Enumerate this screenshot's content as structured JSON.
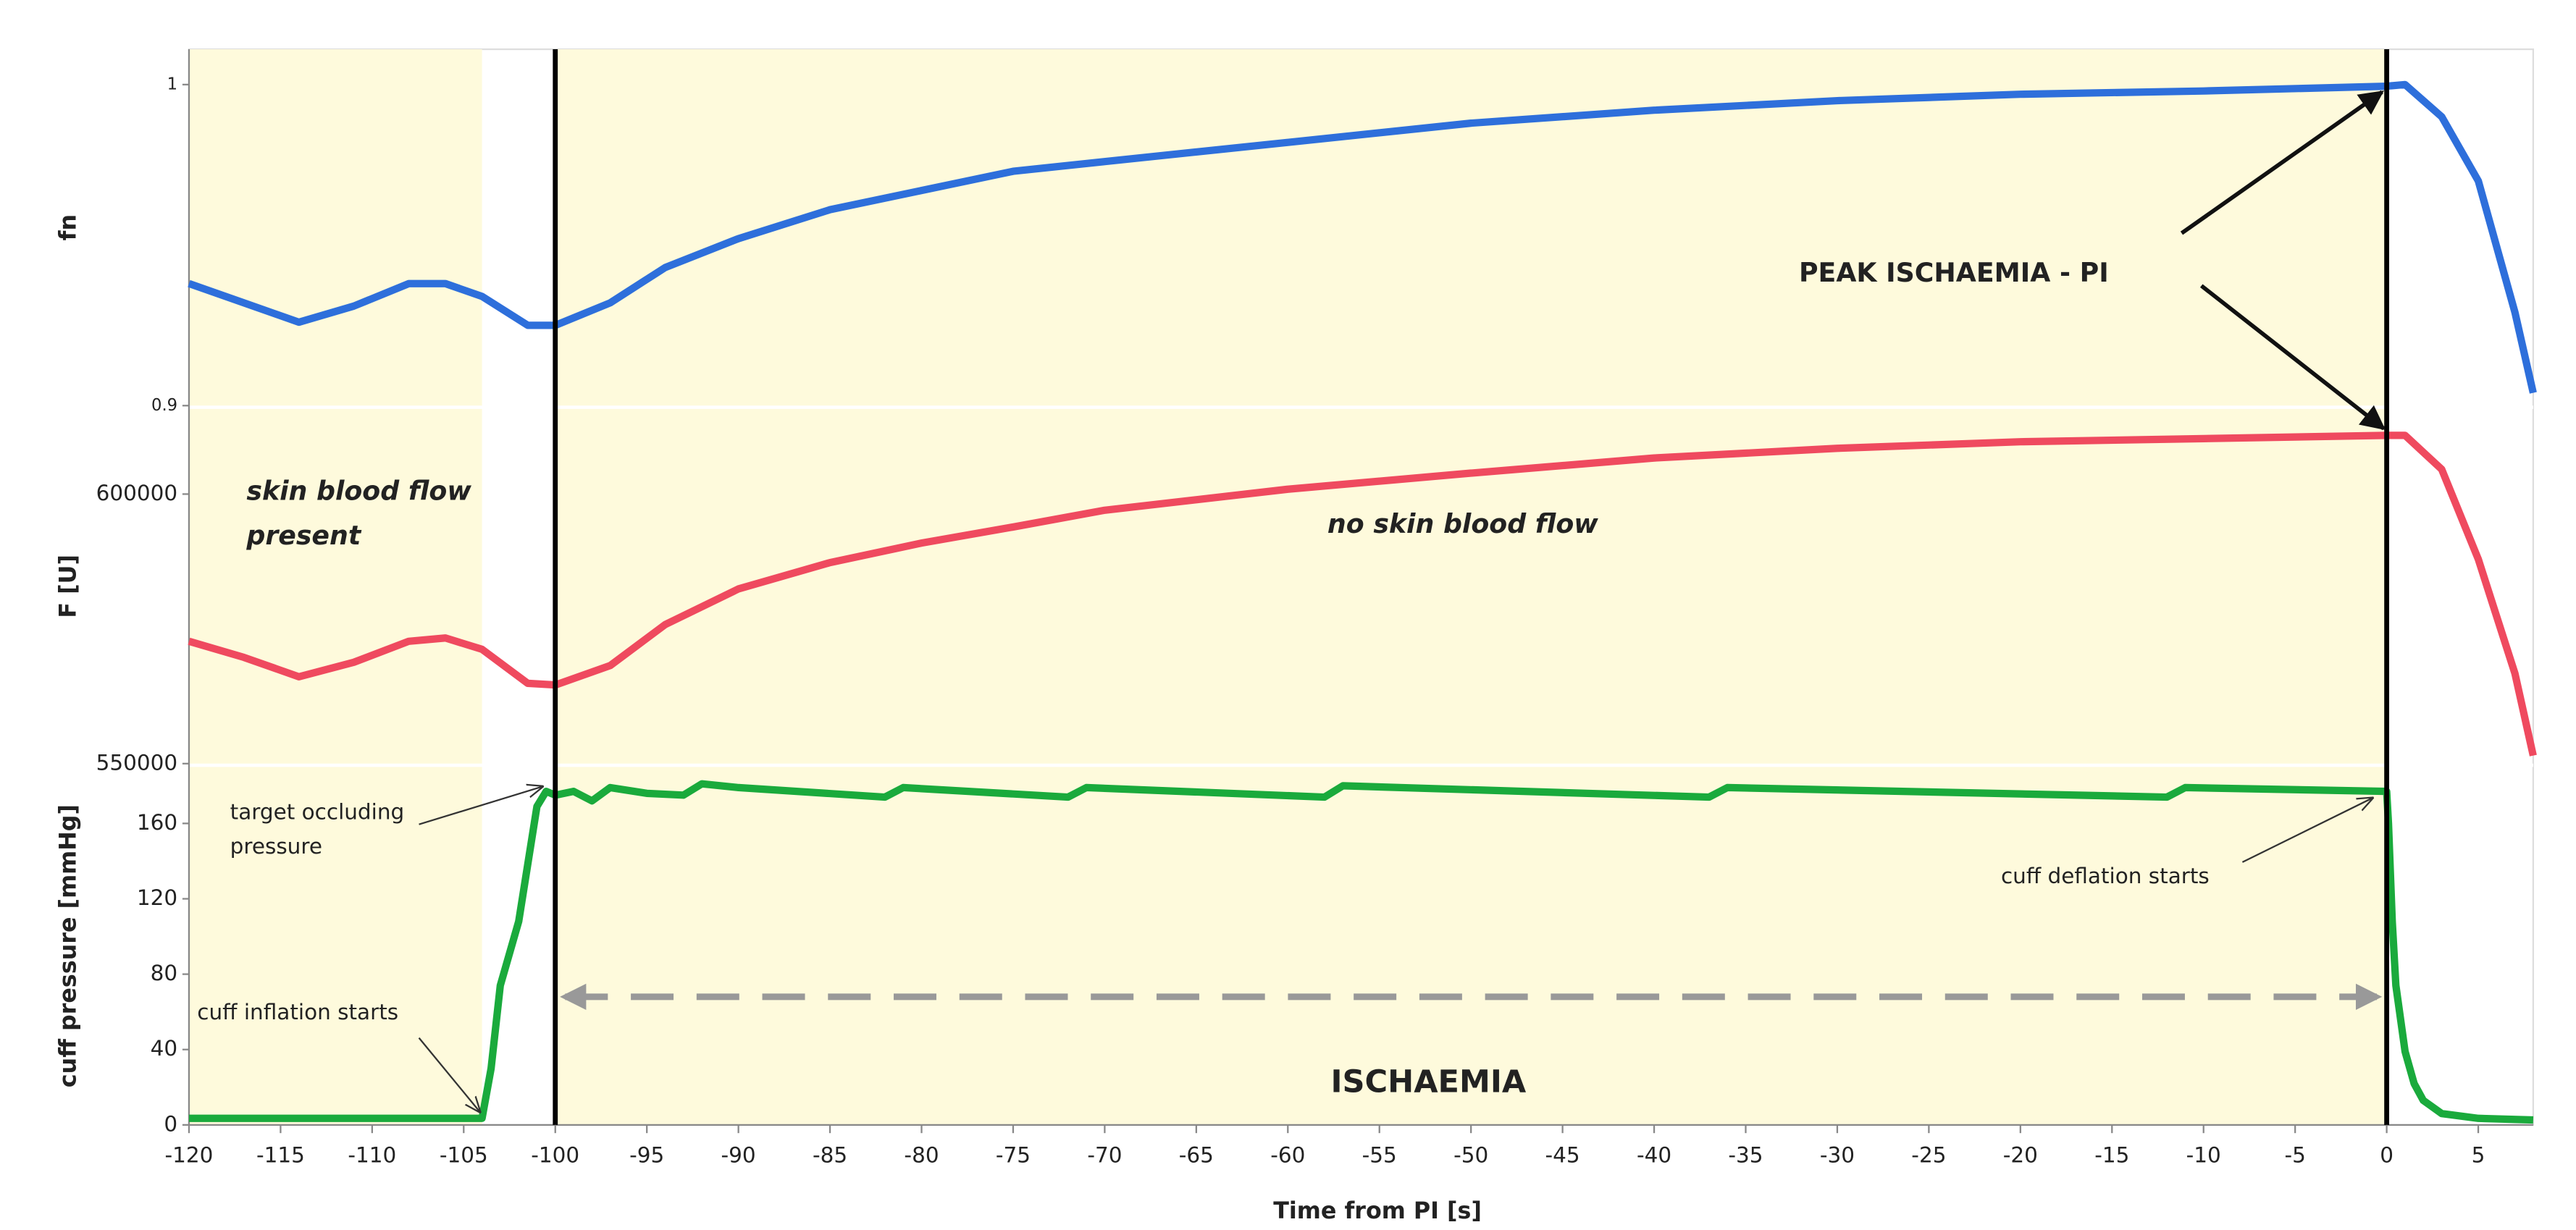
{
  "chart_data": [
    {
      "type": "line",
      "y_label": "fn",
      "color": "#2e6fdb",
      "ylim": [
        0.9,
        1.011
      ],
      "yticks": [
        0.9,
        1
      ],
      "x": [
        -120,
        -117,
        -114,
        -111,
        -108,
        -106,
        -104,
        -101.5,
        -100,
        -97,
        -94,
        -90,
        -85,
        -80,
        -75,
        -70,
        -60,
        -50,
        -40,
        -30,
        -20,
        -10,
        0,
        1,
        3,
        5,
        7,
        8
      ],
      "values": [
        0.938,
        0.932,
        0.926,
        0.931,
        0.938,
        0.938,
        0.934,
        0.925,
        0.925,
        0.932,
        0.943,
        0.952,
        0.961,
        0.967,
        0.973,
        0.976,
        0.982,
        0.988,
        0.992,
        0.995,
        0.997,
        0.998,
        0.9995,
        1.0,
        0.99,
        0.97,
        0.929,
        0.904
      ],
      "annotations": [
        "PEAK ISCHAEMIA - PI"
      ]
    },
    {
      "type": "line",
      "y_label": "F [U]",
      "color": "#ef4a5f",
      "ylim": [
        550000,
        615800
      ],
      "yticks": [
        550000,
        600000
      ],
      "x": [
        -120,
        -117,
        -114,
        -111,
        -108,
        -106,
        -104,
        -101.5,
        -100,
        -97,
        -94,
        -90,
        -85,
        -80,
        -75,
        -70,
        -60,
        -50,
        -40,
        -30,
        -20,
        -10,
        0,
        1,
        3,
        5,
        7,
        8
      ],
      "values": [
        572700,
        569700,
        566100,
        568800,
        572700,
        573300,
        571200,
        564900,
        564600,
        568200,
        575800,
        582400,
        587300,
        590900,
        593900,
        597000,
        600900,
        603900,
        606700,
        608500,
        609700,
        610300,
        610900,
        610900,
        604600,
        587900,
        566700,
        551500
      ],
      "annotations": [
        [
          "skin blood flow",
          "present"
        ],
        "no skin blood flow"
      ]
    },
    {
      "type": "line",
      "y_label": "cuff pressure [mmHg]",
      "color": "#1aaa3c",
      "ylim": [
        0,
        190
      ],
      "yticks": [
        0,
        40,
        80,
        120,
        160
      ],
      "x": [
        -120,
        -104,
        -103.5,
        -103,
        -102,
        -101,
        -100.5,
        -100,
        -99,
        -98,
        -97,
        -95,
        -93,
        -92,
        -90,
        -82,
        -81,
        -72,
        -71,
        -58,
        -57,
        -37,
        -36,
        -12,
        -11,
        0,
        0.1,
        0.3,
        0.5,
        1,
        1.5,
        2,
        3,
        5,
        8
      ],
      "values": [
        3.5,
        3.5,
        30,
        74,
        108,
        169,
        177,
        175,
        177,
        172,
        179,
        176,
        175,
        181,
        179,
        174,
        179,
        174,
        179,
        174,
        180,
        174,
        179,
        174,
        179,
        177,
        160,
        108,
        74,
        39,
        22,
        13,
        6,
        3.5,
        2.6
      ],
      "annotations": [
        [
          "target occluding",
          "pressure"
        ],
        "cuff deflation starts",
        "cuff inflation starts",
        "ISCHAEMIA"
      ],
      "x_label": "Time from PI [s]",
      "xlim": [
        -120,
        8
      ],
      "xticks": [
        -120,
        -115,
        -110,
        -105,
        -100,
        -95,
        -90,
        -85,
        -80,
        -75,
        -70,
        -65,
        -60,
        -55,
        -50,
        -45,
        -40,
        -35,
        -30,
        -25,
        -20,
        -15,
        -10,
        -5,
        0,
        5
      ],
      "shaded_regions": [
        [
          -120,
          -104
        ],
        [
          -100,
          0
        ]
      ],
      "vlines": [
        -100,
        0
      ]
    }
  ]
}
